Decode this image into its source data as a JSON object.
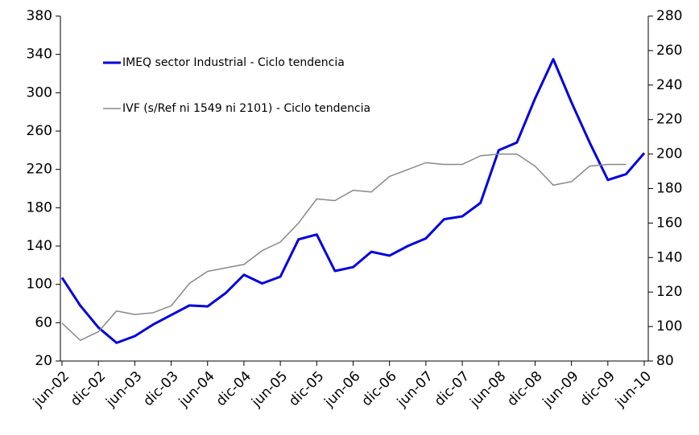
{
  "chart_data": {
    "type": "line",
    "categories": [
      "jun-02",
      null,
      "dic-02",
      null,
      "jun-03",
      null,
      "dic-03",
      null,
      "jun-04",
      null,
      "dic-04",
      null,
      "jun-05",
      null,
      "dic-05",
      null,
      "jun-06",
      null,
      "dic-06",
      null,
      "jun-07",
      null,
      "dic-07",
      null,
      "jun-08",
      null,
      "dic-08",
      null,
      "jun-09",
      null,
      "dic-09",
      null,
      "jun-10"
    ],
    "series": [
      {
        "name": "IMEQ sector Industrial - Ciclo tendencia",
        "color": "#0000dd",
        "axis": "y",
        "values": [
          107,
          78,
          55,
          39,
          46,
          58,
          68,
          78,
          77,
          91,
          110,
          101,
          108,
          147,
          152,
          114,
          118,
          134,
          130,
          140,
          148,
          168,
          171,
          185,
          240,
          248,
          294,
          335,
          290,
          248,
          209,
          215,
          237
        ]
      },
      {
        "name": "IVF (s/Ref ni 1549 ni 2101) - Ciclo tendencia",
        "color": "#888888",
        "axis": "y2",
        "values": [
          102,
          92,
          97,
          109,
          107,
          108,
          112,
          125,
          132,
          134,
          136,
          144,
          149,
          160,
          174,
          173,
          179,
          178,
          187,
          191,
          195,
          194,
          194,
          199,
          200,
          200,
          193,
          182,
          184,
          193,
          194,
          194,
          null
        ]
      }
    ],
    "ylim": [
      20,
      380
    ],
    "yticks": [
      20,
      60,
      100,
      140,
      180,
      220,
      260,
      300,
      340,
      380
    ],
    "y2lim": [
      80,
      280
    ],
    "y2ticks": [
      80,
      100,
      120,
      140,
      160,
      180,
      200,
      220,
      240,
      260,
      280
    ],
    "legend": "upper left"
  }
}
